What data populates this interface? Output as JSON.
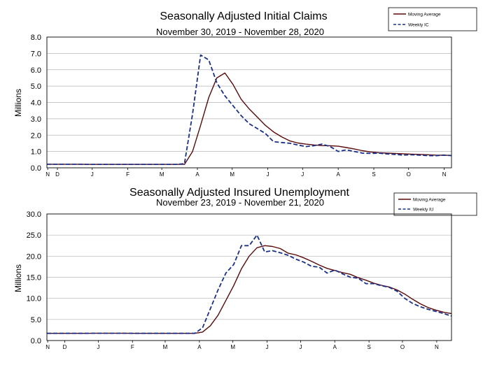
{
  "chart_data": [
    {
      "type": "line",
      "title": "Seasonally Adjusted Initial Claims",
      "subtitle": "November 30, 2019 - November 28, 2020",
      "ylabel": "Millions",
      "xlabel": "",
      "ylim": [
        0,
        8
      ],
      "yticks": [
        "0.0",
        "1.0",
        "2.0",
        "3.0",
        "4.0",
        "5.0",
        "6.0",
        "7.0",
        "8.0"
      ],
      "grid": true,
      "legend_position": "top-right",
      "colors": {
        "moving_average": "#5a0a0a",
        "weekly": "#1a2f8a",
        "grid": "#b5b5b5"
      },
      "x_ticks": [
        {
          "label": "N",
          "w": 0.1
        },
        {
          "label": "D",
          "w": 1.3
        },
        {
          "label": "J",
          "w": 5.6
        },
        {
          "label": "F",
          "w": 10.0
        },
        {
          "label": "M",
          "w": 14.2
        },
        {
          "label": "A",
          "w": 18.6
        },
        {
          "label": "M",
          "w": 22.9
        },
        {
          "label": "J",
          "w": 27.3
        },
        {
          "label": "J",
          "w": 31.6
        },
        {
          "label": "A",
          "w": 36.0
        },
        {
          "label": "S",
          "w": 40.4
        },
        {
          "label": "O",
          "w": 44.7
        },
        {
          "label": "N",
          "w": 49.1
        }
      ],
      "series": [
        {
          "name": "Moving Average",
          "style": "solid",
          "values": [
            0.22,
            0.22,
            0.22,
            0.22,
            0.22,
            0.21,
            0.21,
            0.21,
            0.21,
            0.21,
            0.21,
            0.21,
            0.21,
            0.21,
            0.21,
            0.21,
            0.21,
            0.21,
            1.0,
            2.6,
            4.3,
            5.5,
            5.8,
            5.1,
            4.2,
            3.6,
            3.1,
            2.6,
            2.2,
            1.9,
            1.65,
            1.52,
            1.45,
            1.4,
            1.36,
            1.35,
            1.32,
            1.24,
            1.15,
            1.05,
            0.97,
            0.93,
            0.9,
            0.88,
            0.86,
            0.84,
            0.82,
            0.8,
            0.78,
            0.77,
            0.76
          ]
        },
        {
          "name": "Weekly IC",
          "style": "dashed",
          "values": [
            0.22,
            0.22,
            0.22,
            0.22,
            0.22,
            0.21,
            0.21,
            0.21,
            0.21,
            0.21,
            0.21,
            0.21,
            0.21,
            0.21,
            0.21,
            0.21,
            0.21,
            0.25,
            3.3,
            6.9,
            6.6,
            5.2,
            4.4,
            3.8,
            3.2,
            2.7,
            2.4,
            2.1,
            1.6,
            1.55,
            1.5,
            1.4,
            1.3,
            1.35,
            1.45,
            1.3,
            1.0,
            1.1,
            1.0,
            0.9,
            0.88,
            0.9,
            0.85,
            0.82,
            0.78,
            0.8,
            0.78,
            0.75,
            0.74,
            0.78,
            0.75
          ]
        }
      ]
    },
    {
      "type": "line",
      "title": "Seasonally Adjusted Insured Unemployment",
      "subtitle": "November 23, 2019 - November 21, 2020",
      "ylabel": "Millions",
      "xlabel": "",
      "ylim": [
        0,
        30
      ],
      "yticks": [
        "0.0",
        "5.0",
        "10.0",
        "15.0",
        "20.0",
        "25.0",
        "30.0"
      ],
      "grid": true,
      "legend_position": "top-right",
      "colors": {
        "moving_average": "#5a0a0a",
        "weekly": "#1a2f8a",
        "grid": "#b5b5b5"
      },
      "x_ticks": [
        {
          "label": "N",
          "w": 0.1
        },
        {
          "label": "D",
          "w": 2.3
        },
        {
          "label": "J",
          "w": 6.6
        },
        {
          "label": "F",
          "w": 11.0
        },
        {
          "label": "M",
          "w": 15.2
        },
        {
          "label": "A",
          "w": 19.6
        },
        {
          "label": "M",
          "w": 23.9
        },
        {
          "label": "J",
          "w": 28.3
        },
        {
          "label": "J",
          "w": 32.6
        },
        {
          "label": "A",
          "w": 37.0
        },
        {
          "label": "S",
          "w": 41.4
        },
        {
          "label": "O",
          "w": 45.7
        },
        {
          "label": "N",
          "w": 50.1
        }
      ],
      "series": [
        {
          "name": "Moving Average",
          "style": "solid",
          "values": [
            1.7,
            1.7,
            1.7,
            1.7,
            1.7,
            1.7,
            1.72,
            1.72,
            1.72,
            1.72,
            1.72,
            1.7,
            1.7,
            1.7,
            1.7,
            1.7,
            1.7,
            1.7,
            1.7,
            1.7,
            2.0,
            3.5,
            6.0,
            9.5,
            13.0,
            17.0,
            20.0,
            22.0,
            22.5,
            22.3,
            21.8,
            20.7,
            20.3,
            19.6,
            18.8,
            17.9,
            17.1,
            16.6,
            16.1,
            15.7,
            14.9,
            14.3,
            13.6,
            13.1,
            12.7,
            12.0,
            11.0,
            9.8,
            8.7,
            7.8,
            7.2,
            6.7,
            6.4
          ]
        },
        {
          "name": "Weekly IU",
          "style": "dashed",
          "values": [
            1.7,
            1.7,
            1.7,
            1.7,
            1.7,
            1.7,
            1.72,
            1.72,
            1.72,
            1.72,
            1.72,
            1.7,
            1.7,
            1.7,
            1.7,
            1.7,
            1.7,
            1.7,
            1.7,
            1.7,
            3.0,
            7.5,
            12.0,
            16.0,
            18.0,
            22.5,
            22.5,
            25.0,
            21.0,
            21.3,
            20.8,
            20.2,
            19.3,
            18.6,
            17.6,
            17.4,
            16.0,
            16.7,
            15.8,
            15.0,
            14.8,
            13.5,
            13.5,
            13.0,
            12.6,
            11.7,
            10.0,
            8.8,
            8.0,
            7.4,
            6.9,
            6.4,
            5.8
          ]
        }
      ]
    }
  ]
}
